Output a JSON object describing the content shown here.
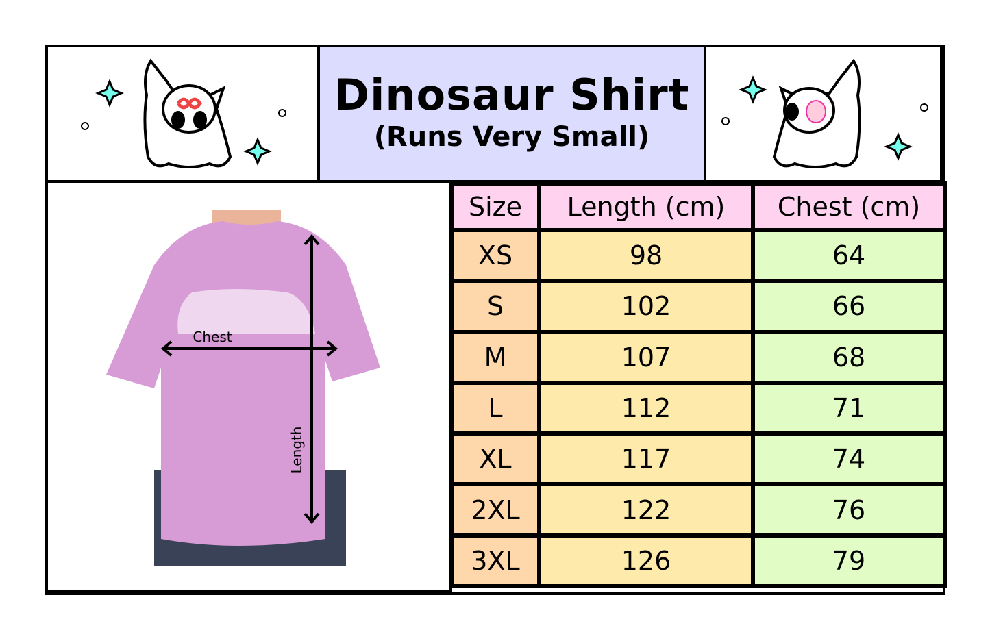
{
  "title": "Dinosaur Shirt",
  "subtitle": "(Runs Very Small)",
  "photo_labels": {
    "chest": "Chest",
    "length": "Length"
  },
  "table": {
    "headers": [
      "Size",
      "Length (cm)",
      "Chest (cm)"
    ],
    "rows": [
      {
        "size": "XS",
        "length": "98",
        "chest": "64"
      },
      {
        "size": "S",
        "length": "102",
        "chest": "66"
      },
      {
        "size": "M",
        "length": "107",
        "chest": "68"
      },
      {
        "size": "L",
        "length": "112",
        "chest": "71"
      },
      {
        "size": "XL",
        "length": "117",
        "chest": "74"
      },
      {
        "size": "2XL",
        "length": "122",
        "chest": "76"
      },
      {
        "size": "3XL",
        "length": "126",
        "chest": "79"
      }
    ]
  },
  "colors": {
    "title_bg": "#dcdcfe",
    "header_bg": "#ffd3f0",
    "size_bg": "#fed7ab",
    "length_bg": "#feeaaa",
    "chest_bg": "#e1fdc5",
    "shirt": "#d79bd6"
  }
}
